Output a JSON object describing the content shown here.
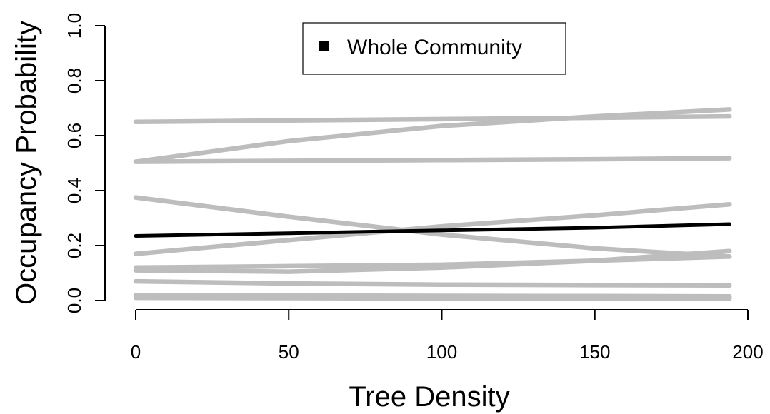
{
  "chart_data": {
    "type": "line",
    "title": "",
    "xlabel": "Tree Density",
    "ylabel": "Occupancy Probability",
    "xlim": [
      0,
      200
    ],
    "ylim": [
      0,
      1
    ],
    "x_ticks": [
      0,
      50,
      100,
      150,
      200
    ],
    "y_ticks": [
      0.0,
      0.2,
      0.4,
      0.6,
      0.8,
      1.0
    ],
    "x_tick_labels": [
      "0",
      "50",
      "100",
      "150",
      "200"
    ],
    "y_tick_labels": [
      "0.0",
      "0.2",
      "0.4",
      "0.6",
      "0.8",
      "1.0"
    ],
    "grid": false,
    "legend": {
      "position": "top-center",
      "entries": [
        {
          "name": "Whole Community",
          "color": "#000000"
        }
      ]
    },
    "x": [
      0,
      50,
      100,
      150,
      194
    ],
    "series": [
      {
        "color": "#bdbdbd",
        "values": [
          0.65,
          0.655,
          0.66,
          0.665,
          0.67
        ]
      },
      {
        "color": "#bdbdbd",
        "values": [
          0.505,
          0.58,
          0.635,
          0.67,
          0.695
        ]
      },
      {
        "color": "#bdbdbd",
        "values": [
          0.505,
          0.508,
          0.511,
          0.514,
          0.518
        ]
      },
      {
        "color": "#bdbdbd",
        "values": [
          0.375,
          0.305,
          0.24,
          0.19,
          0.16
        ]
      },
      {
        "color": "#bdbdbd",
        "values": [
          0.17,
          0.22,
          0.27,
          0.31,
          0.35
        ]
      },
      {
        "color": "#bdbdbd",
        "values": [
          0.12,
          0.125,
          0.13,
          0.145,
          0.16
        ]
      },
      {
        "color": "#bdbdbd",
        "values": [
          0.11,
          0.105,
          0.12,
          0.145,
          0.18
        ]
      },
      {
        "color": "#bdbdbd",
        "values": [
          0.07,
          0.062,
          0.058,
          0.056,
          0.055
        ]
      },
      {
        "color": "#bdbdbd",
        "values": [
          0.02,
          0.018,
          0.017,
          0.016,
          0.015
        ]
      },
      {
        "color": "#bdbdbd",
        "values": [
          0.01,
          0.009,
          0.008,
          0.008,
          0.008
        ]
      },
      {
        "name": "Whole Community",
        "color": "#000000",
        "values": [
          0.235,
          0.245,
          0.255,
          0.265,
          0.278
        ]
      }
    ]
  }
}
